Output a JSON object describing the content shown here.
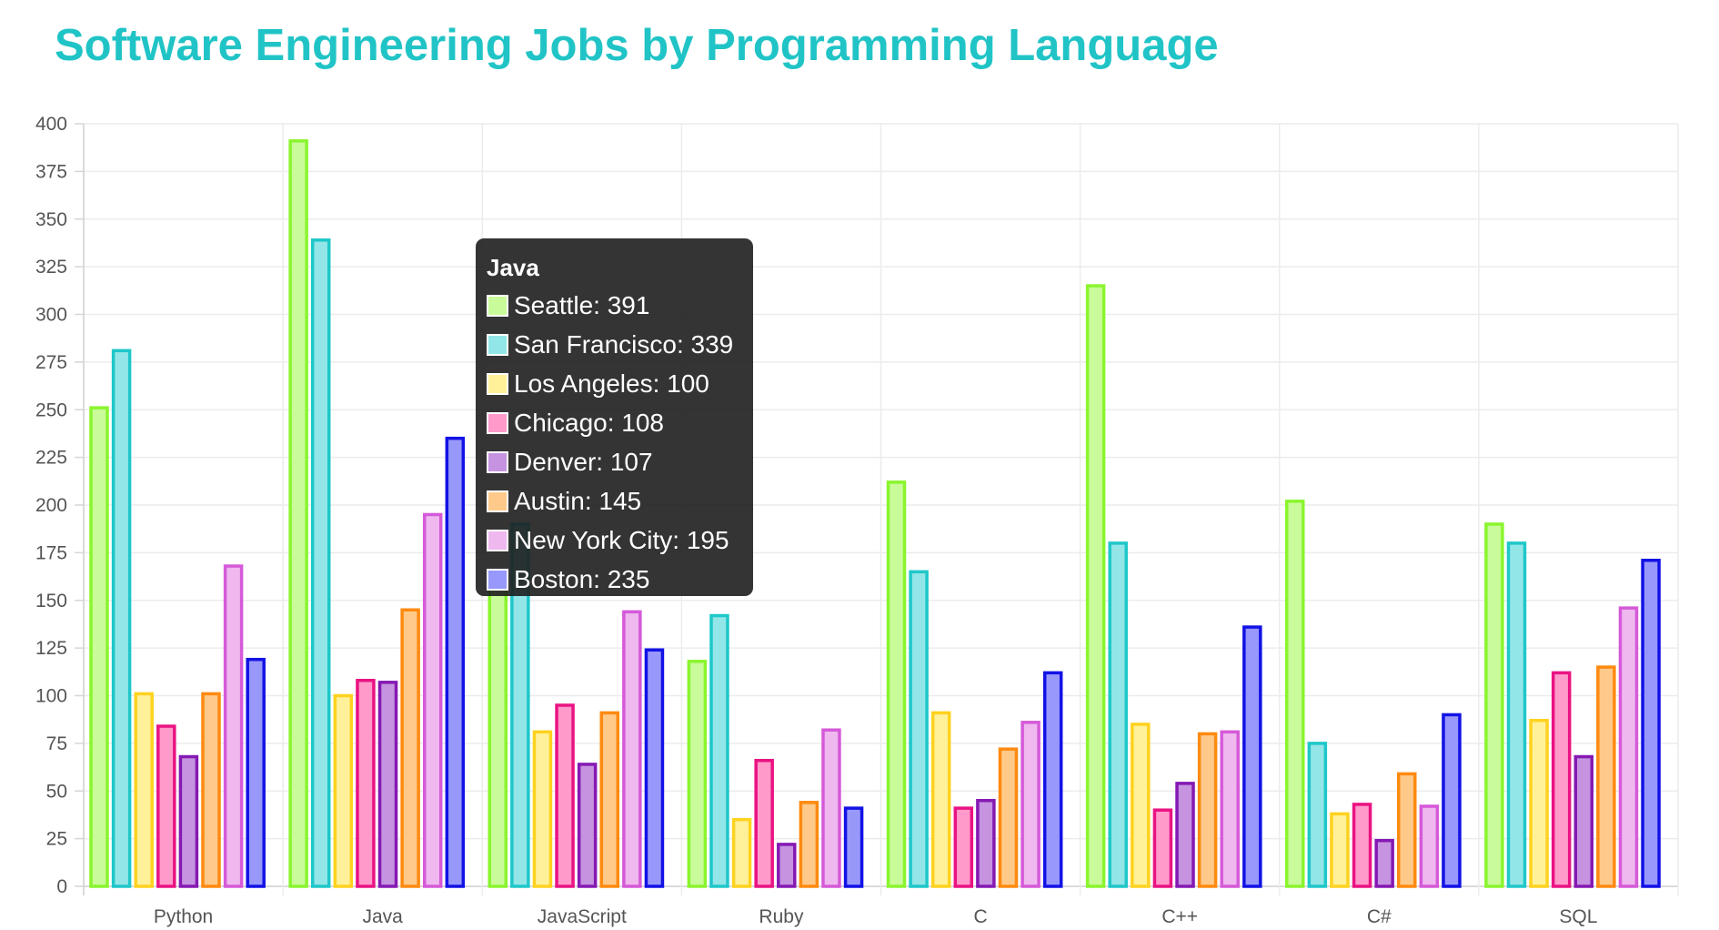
{
  "chart_data": {
    "type": "bar",
    "title": "Software Engineering Jobs by Programming Language",
    "categories": [
      "Python",
      "Java",
      "JavaScript",
      "Ruby",
      "C",
      "C++",
      "C#",
      "SQL"
    ],
    "ylim": [
      0,
      400
    ],
    "yticks": [
      0,
      25,
      50,
      75,
      100,
      125,
      150,
      175,
      200,
      225,
      250,
      275,
      300,
      325,
      350,
      375,
      400
    ],
    "grid": true,
    "series": [
      {
        "name": "Seattle",
        "border": "#8af52e",
        "fill": "#c9fb9a",
        "values": [
          251,
          391,
          160,
          118,
          212,
          315,
          202,
          190
        ]
      },
      {
        "name": "San Francisco",
        "border": "#1fc7c9",
        "fill": "#93e6e8",
        "values": [
          281,
          339,
          190,
          142,
          165,
          180,
          75,
          180
        ]
      },
      {
        "name": "Los Angeles",
        "border": "#ffd21f",
        "fill": "#fff19a",
        "values": [
          101,
          100,
          81,
          35,
          91,
          85,
          38,
          87
        ]
      },
      {
        "name": "Chicago",
        "border": "#ea1383",
        "fill": "#ff9acb",
        "values": [
          84,
          108,
          95,
          66,
          41,
          40,
          43,
          112
        ]
      },
      {
        "name": "Denver",
        "border": "#8519b3",
        "fill": "#c593e0",
        "values": [
          68,
          107,
          64,
          22,
          45,
          54,
          24,
          68
        ]
      },
      {
        "name": "Austin",
        "border": "#ff8a10",
        "fill": "#ffc98a",
        "values": [
          101,
          145,
          91,
          44,
          72,
          80,
          59,
          115
        ]
      },
      {
        "name": "New York City",
        "border": "#d55ad8",
        "fill": "#efb8ef",
        "values": [
          168,
          195,
          144,
          82,
          86,
          81,
          42,
          146
        ]
      },
      {
        "name": "Boston",
        "border": "#1212e6",
        "fill": "#9898fb",
        "values": [
          119,
          235,
          124,
          41,
          112,
          136,
          90,
          171
        ]
      }
    ]
  },
  "tooltip": {
    "title": "Java",
    "rows": [
      {
        "text": "Seattle: 391",
        "color": "#c9fb9a"
      },
      {
        "text": "San Francisco: 339",
        "color": "#93e6e8"
      },
      {
        "text": "Los Angeles: 100",
        "color": "#fff19a"
      },
      {
        "text": "Chicago: 108",
        "color": "#ff9acb"
      },
      {
        "text": "Denver: 107",
        "color": "#c593e0"
      },
      {
        "text": "Austin: 145",
        "color": "#ffc98a"
      },
      {
        "text": "New York City: 195",
        "color": "#efb8ef"
      },
      {
        "text": "Boston: 235",
        "color": "#9898fb"
      }
    ]
  }
}
